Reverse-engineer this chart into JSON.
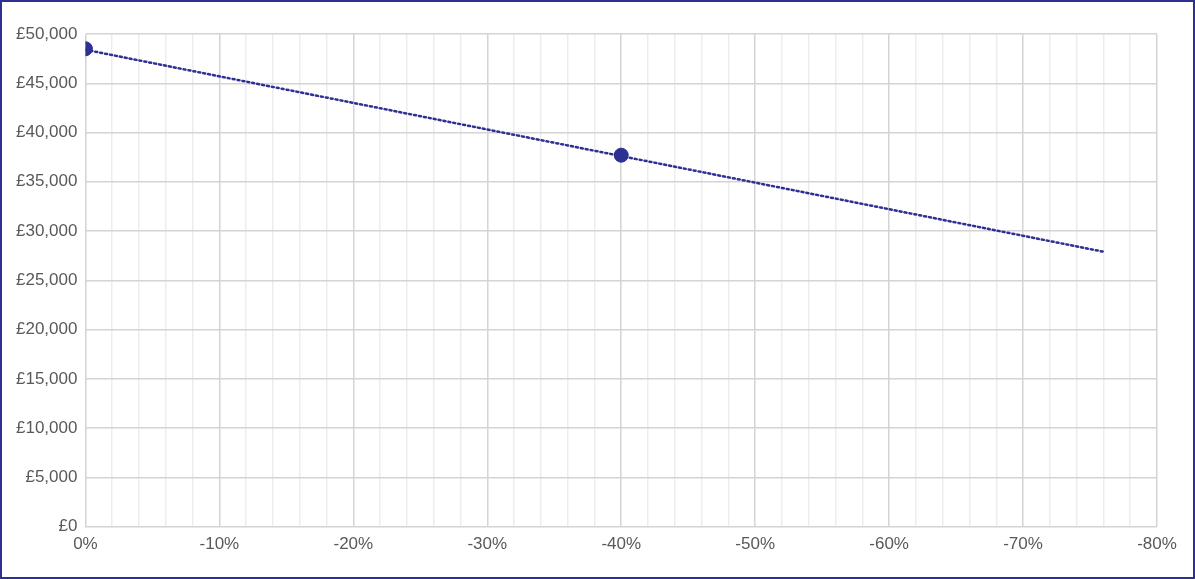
{
  "chart_data": {
    "type": "scatter",
    "xlim": [
      0,
      -80
    ],
    "ylim": [
      0,
      50000
    ],
    "xticks": [
      {
        "value": 0,
        "label": "0%"
      },
      {
        "value": -2,
        "label": null
      },
      {
        "value": -4,
        "label": null
      },
      {
        "value": -6,
        "label": null
      },
      {
        "value": -8,
        "label": null
      },
      {
        "value": -10,
        "label": "-10%"
      },
      {
        "value": -12,
        "label": null
      },
      {
        "value": -14,
        "label": null
      },
      {
        "value": -16,
        "label": null
      },
      {
        "value": -18,
        "label": null
      },
      {
        "value": -20,
        "label": "-20%"
      },
      {
        "value": -22,
        "label": null
      },
      {
        "value": -24,
        "label": null
      },
      {
        "value": -26,
        "label": null
      },
      {
        "value": -28,
        "label": null
      },
      {
        "value": -30,
        "label": "-30%"
      },
      {
        "value": -32,
        "label": null
      },
      {
        "value": -34,
        "label": null
      },
      {
        "value": -36,
        "label": null
      },
      {
        "value": -38,
        "label": null
      },
      {
        "value": -40,
        "label": "-40%"
      },
      {
        "value": -42,
        "label": null
      },
      {
        "value": -44,
        "label": null
      },
      {
        "value": -46,
        "label": null
      },
      {
        "value": -48,
        "label": null
      },
      {
        "value": -50,
        "label": "-50%"
      },
      {
        "value": -52,
        "label": null
      },
      {
        "value": -54,
        "label": null
      },
      {
        "value": -56,
        "label": null
      },
      {
        "value": -58,
        "label": null
      },
      {
        "value": -60,
        "label": "-60%"
      },
      {
        "value": -62,
        "label": null
      },
      {
        "value": -64,
        "label": null
      },
      {
        "value": -66,
        "label": null
      },
      {
        "value": -68,
        "label": null
      },
      {
        "value": -70,
        "label": "-70%"
      },
      {
        "value": -72,
        "label": null
      },
      {
        "value": -74,
        "label": null
      },
      {
        "value": -76,
        "label": null
      },
      {
        "value": -78,
        "label": null
      },
      {
        "value": -80,
        "label": "-80%"
      }
    ],
    "yticks": [
      {
        "value": 0,
        "label": "£0"
      },
      {
        "value": 5000,
        "label": "£5,000"
      },
      {
        "value": 10000,
        "label": "£10,000"
      },
      {
        "value": 15000,
        "label": "£15,000"
      },
      {
        "value": 20000,
        "label": "£20,000"
      },
      {
        "value": 25000,
        "label": "£25,000"
      },
      {
        "value": 30000,
        "label": "£30,000"
      },
      {
        "value": 35000,
        "label": "£35,000"
      },
      {
        "value": 40000,
        "label": "£40,000"
      },
      {
        "value": 45000,
        "label": "£45,000"
      },
      {
        "value": 50000,
        "label": "£50,000"
      }
    ],
    "grid": true,
    "series": [
      {
        "color": "#2e3192",
        "x": [
          0,
          -40
        ],
        "values": [
          48500,
          37700
        ],
        "marker": "circle"
      },
      {
        "type": "line",
        "color": "#2e3192",
        "x": [
          0,
          -76
        ],
        "values": [
          48400,
          27900
        ],
        "line_style": "dotted",
        "marker": "none"
      }
    ]
  }
}
